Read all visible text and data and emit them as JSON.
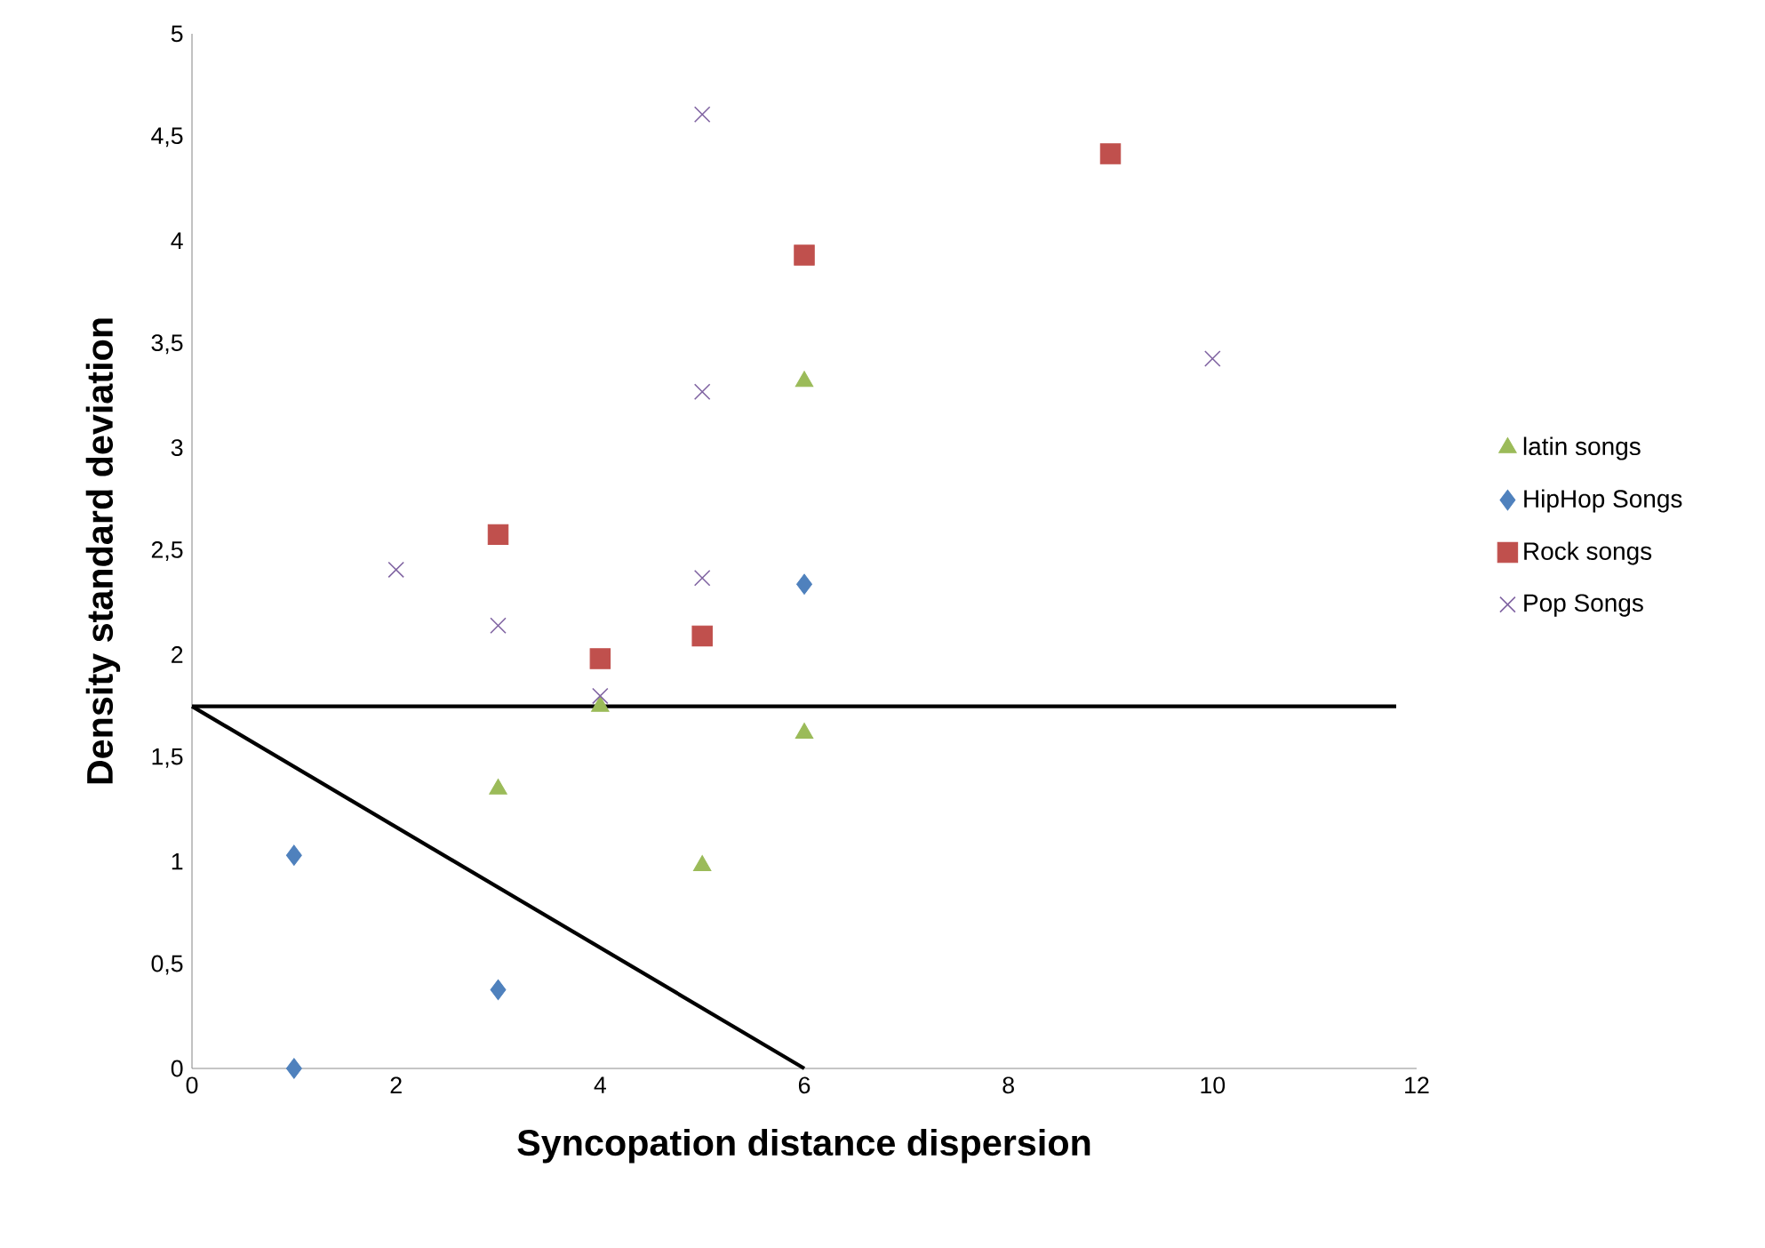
{
  "chart_data": {
    "type": "scatter",
    "xlabel": "Syncopation distance dispersion",
    "ylabel": "Density standard deviation",
    "series": [
      {
        "name": "latin songs",
        "color": "#9bbb59",
        "marker": "triangle",
        "x": [
          3,
          4,
          5,
          6,
          6
        ],
        "values": [
          1.35,
          1.75,
          0.98,
          1.62,
          3.32
        ]
      },
      {
        "name": "HipHop Songs",
        "color": "#4f81bd",
        "marker": "diamond",
        "x": [
          1,
          1,
          3,
          4,
          6
        ],
        "values": [
          1.03,
          0,
          0.38,
          null,
          2.34
        ]
      },
      {
        "name": "Rock songs",
        "color": "#c0504d",
        "marker": "square",
        "x": [
          3,
          4,
          5,
          6,
          9
        ],
        "values": [
          2.58,
          1.98,
          2.09,
          3.93,
          4.42
        ]
      },
      {
        "name": "Pop Songs",
        "color": "#8064a2",
        "marker": "cross",
        "x": [
          2,
          3,
          4,
          5,
          5,
          5,
          10
        ],
        "values": [
          2.41,
          2.14,
          1.8,
          2.37,
          3.27,
          4.61,
          3.43
        ]
      },
      {
        "type": "line",
        "color": "#000000",
        "marker": "none",
        "line_style": "solid",
        "x": [
          0,
          11.8
        ],
        "values": [
          1.75,
          1.75
        ]
      },
      {
        "type": "line",
        "color": "#000000",
        "marker": "none",
        "line_style": "solid",
        "x": [
          0,
          6
        ],
        "values": [
          1.75,
          0
        ]
      }
    ],
    "xlim": [
      0,
      12
    ],
    "ylim": [
      0,
      5
    ],
    "xticks": [
      0,
      2,
      4,
      6,
      8,
      10,
      12
    ],
    "yticks": [
      0,
      {
        "value": 0.5,
        "label": "0,5"
      },
      1,
      {
        "value": 1.5,
        "label": "1,5"
      },
      2,
      {
        "value": 2.5,
        "label": "2,5"
      },
      3,
      {
        "value": 3.5,
        "label": "3,5"
      },
      4,
      {
        "value": 4.5,
        "label": "4,5"
      },
      5
    ],
    "grid": false,
    "legend": "right"
  }
}
